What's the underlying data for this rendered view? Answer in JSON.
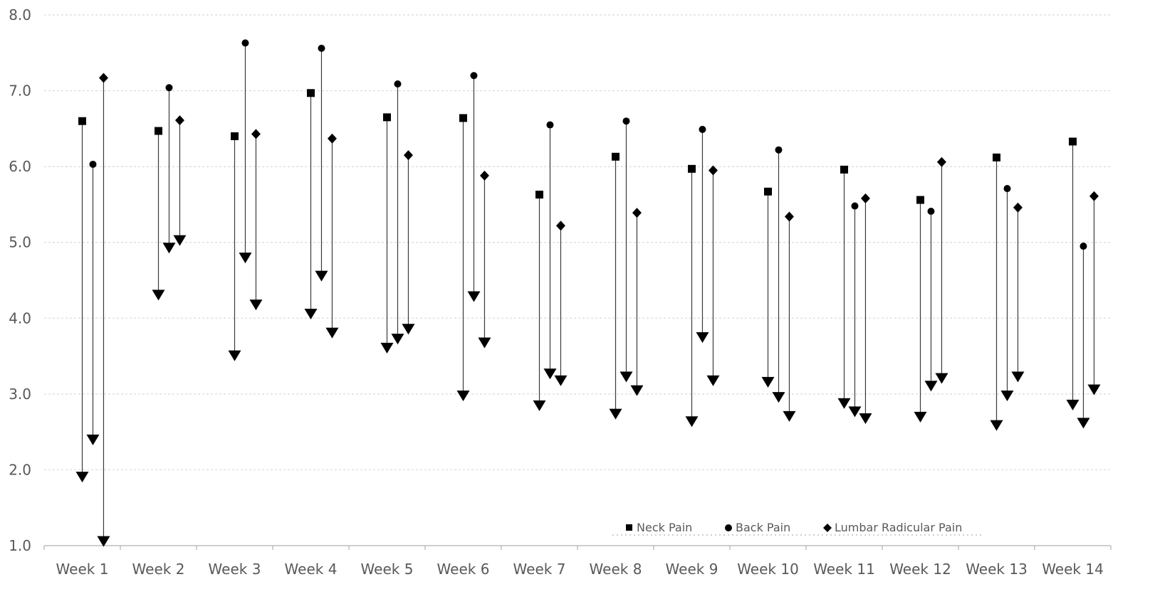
{
  "chart_data": {
    "type": "scatter",
    "subtype": "dumbbell-arrow",
    "title": "",
    "xlabel": "",
    "ylabel": "",
    "ylim": [
      1.0,
      8.0
    ],
    "y_ticks": [
      "1.0",
      "2.0",
      "3.0",
      "4.0",
      "5.0",
      "6.0",
      "7.0",
      "8.0"
    ],
    "grid": "horizontal dotted",
    "legend_position": "bottom-right",
    "categories": [
      "Week 1",
      "Week 2",
      "Week 3",
      "Week 4",
      "Week 5",
      "Week 6",
      "Week 7",
      "Week 8",
      "Week 9",
      "Week 10",
      "Week 11",
      "Week 12",
      "Week 13",
      "Week 14"
    ],
    "series": [
      {
        "name": "Neck Pain",
        "marker": "square",
        "start": [
          6.6,
          6.47,
          6.4,
          6.97,
          6.65,
          6.64,
          5.63,
          6.13,
          5.97,
          5.67,
          5.96,
          5.56,
          6.12,
          6.33
        ],
        "end": [
          1.9,
          4.3,
          3.5,
          4.05,
          3.6,
          2.97,
          2.84,
          2.73,
          2.63,
          3.15,
          2.87,
          2.69,
          2.58,
          2.85
        ]
      },
      {
        "name": "Back Pain",
        "marker": "circle",
        "start": [
          6.03,
          7.04,
          7.63,
          7.56,
          7.09,
          7.2,
          6.55,
          6.6,
          6.49,
          6.22,
          5.48,
          5.41,
          5.71,
          4.95
        ],
        "end": [
          2.39,
          4.92,
          4.79,
          4.55,
          3.72,
          4.28,
          3.26,
          3.22,
          3.74,
          2.95,
          2.76,
          3.1,
          2.97,
          2.61
        ]
      },
      {
        "name": "Lumbar Radicular Pain",
        "marker": "diamond",
        "start": [
          7.17,
          6.61,
          6.43,
          6.37,
          6.15,
          5.88,
          5.22,
          5.39,
          5.95,
          5.34,
          5.58,
          6.06,
          5.46,
          5.61
        ],
        "end": [
          1.05,
          5.02,
          4.17,
          3.8,
          3.85,
          3.67,
          3.17,
          3.04,
          3.17,
          2.7,
          2.67,
          3.2,
          3.22,
          3.05
        ]
      }
    ]
  },
  "colors": {
    "marker": "#000000",
    "axis": "#bfbfbf",
    "grid": "#d9d9d9",
    "text": "#595959"
  }
}
